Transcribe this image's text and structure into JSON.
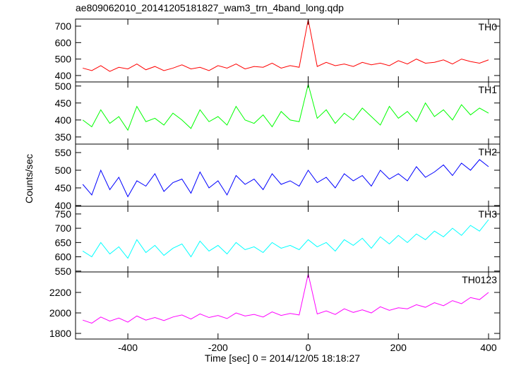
{
  "chart_data": [
    {
      "type": "line",
      "title": "ae809062010_20141205181827_wam3_trn_4band_long.qdp",
      "label": "TH0",
      "x": [
        -500,
        -480,
        -460,
        -440,
        -420,
        -400,
        -380,
        -360,
        -340,
        -320,
        -300,
        -280,
        -260,
        -240,
        -220,
        -200,
        -180,
        -160,
        -140,
        -120,
        -100,
        -80,
        -60,
        -40,
        -20,
        0,
        20,
        40,
        60,
        80,
        100,
        120,
        140,
        160,
        180,
        200,
        220,
        240,
        260,
        280,
        300,
        320,
        340,
        360,
        380,
        400
      ],
      "values": [
        445,
        430,
        460,
        425,
        450,
        440,
        470,
        435,
        455,
        430,
        445,
        465,
        440,
        450,
        430,
        460,
        445,
        470,
        440,
        455,
        450,
        475,
        445,
        460,
        450,
        740,
        455,
        480,
        460,
        470,
        455,
        480,
        465,
        475,
        460,
        490,
        470,
        500,
        475,
        480,
        495,
        470,
        500,
        485,
        475,
        495
      ],
      "color": "#ff0000",
      "ylim": [
        361,
        743
      ],
      "yticks": [
        400,
        500,
        600,
        700
      ]
    },
    {
      "type": "line",
      "label": "TH1",
      "x": [
        -500,
        -480,
        -460,
        -440,
        -420,
        -400,
        -380,
        -360,
        -340,
        -320,
        -300,
        -280,
        -260,
        -240,
        -220,
        -200,
        -180,
        -160,
        -140,
        -120,
        -100,
        -80,
        -60,
        -40,
        -20,
        0,
        20,
        40,
        60,
        80,
        100,
        120,
        140,
        160,
        180,
        200,
        220,
        240,
        260,
        280,
        300,
        320,
        340,
        360,
        380,
        400
      ],
      "values": [
        400,
        380,
        430,
        390,
        410,
        370,
        440,
        395,
        405,
        385,
        420,
        400,
        375,
        430,
        395,
        410,
        385,
        440,
        400,
        390,
        415,
        380,
        425,
        400,
        395,
        505,
        405,
        430,
        390,
        420,
        400,
        435,
        410,
        385,
        440,
        405,
        425,
        395,
        450,
        410,
        430,
        400,
        445,
        415,
        435,
        420
      ],
      "color": "#00ff00",
      "ylim": [
        329,
        512
      ],
      "yticks": [
        350,
        400,
        450,
        500
      ]
    },
    {
      "type": "line",
      "label": "TH2",
      "ylabel": "Counts/sec",
      "x": [
        -500,
        -480,
        -460,
        -440,
        -420,
        -400,
        -380,
        -360,
        -340,
        -320,
        -300,
        -280,
        -260,
        -240,
        -220,
        -200,
        -180,
        -160,
        -140,
        -120,
        -100,
        -80,
        -60,
        -40,
        -20,
        0,
        20,
        40,
        60,
        80,
        100,
        120,
        140,
        160,
        180,
        200,
        220,
        240,
        260,
        280,
        300,
        320,
        340,
        360,
        380,
        400
      ],
      "values": [
        460,
        430,
        500,
        445,
        480,
        425,
        470,
        455,
        490,
        440,
        465,
        475,
        435,
        495,
        450,
        470,
        430,
        485,
        460,
        475,
        445,
        490,
        460,
        470,
        455,
        500,
        465,
        480,
        450,
        490,
        470,
        485,
        455,
        500,
        475,
        490,
        470,
        510,
        480,
        495,
        515,
        485,
        520,
        500,
        530,
        510
      ],
      "color": "#0000ff",
      "ylim": [
        398,
        574
      ],
      "yticks": [
        400,
        450,
        500,
        550
      ]
    },
    {
      "type": "line",
      "label": "TH3",
      "x": [
        -500,
        -480,
        -460,
        -440,
        -420,
        -400,
        -380,
        -360,
        -340,
        -320,
        -300,
        -280,
        -260,
        -240,
        -220,
        -200,
        -180,
        -160,
        -140,
        -120,
        -100,
        -80,
        -60,
        -40,
        -20,
        0,
        20,
        40,
        60,
        80,
        100,
        120,
        140,
        160,
        180,
        200,
        220,
        240,
        260,
        280,
        300,
        320,
        340,
        360,
        380,
        400
      ],
      "values": [
        620,
        600,
        650,
        610,
        635,
        595,
        660,
        615,
        640,
        605,
        630,
        645,
        600,
        655,
        620,
        640,
        610,
        650,
        625,
        635,
        615,
        650,
        630,
        640,
        625,
        660,
        635,
        650,
        620,
        660,
        640,
        665,
        630,
        670,
        645,
        675,
        650,
        680,
        660,
        690,
        670,
        700,
        675,
        710,
        690,
        730
      ],
      "color": "#00ffff",
      "ylim": [
        547,
        777
      ],
      "yticks": [
        550,
        600,
        650,
        700,
        750
      ]
    },
    {
      "type": "line",
      "label": "TH0123",
      "xlabel": "Time [sec] 0 = 2014/12/05 18:18:27",
      "xlim": [
        -516,
        425
      ],
      "xticks": [
        -400,
        -200,
        0,
        200,
        400
      ],
      "x": [
        -500,
        -480,
        -460,
        -440,
        -420,
        -400,
        -380,
        -360,
        -340,
        -320,
        -300,
        -280,
        -260,
        -240,
        -220,
        -200,
        -180,
        -160,
        -140,
        -120,
        -100,
        -80,
        -60,
        -40,
        -20,
        0,
        20,
        40,
        60,
        80,
        100,
        120,
        140,
        160,
        180,
        200,
        220,
        240,
        260,
        280,
        300,
        320,
        340,
        360,
        380,
        400
      ],
      "values": [
        1930,
        1900,
        1960,
        1920,
        1950,
        1910,
        1970,
        1930,
        1955,
        1925,
        1960,
        1980,
        1940,
        1990,
        1955,
        1975,
        1945,
        2000,
        1970,
        1985,
        1960,
        2010,
        1975,
        1995,
        1980,
        2380,
        1990,
        2020,
        1985,
        2040,
        2005,
        2030,
        2000,
        2060,
        2025,
        2050,
        2040,
        2080,
        2055,
        2100,
        2070,
        2120,
        2090,
        2150,
        2130,
        2200
      ],
      "color": "#ff00ff",
      "ylim": [
        1745,
        2400
      ],
      "yticks": [
        1800,
        2000,
        2200
      ]
    }
  ]
}
